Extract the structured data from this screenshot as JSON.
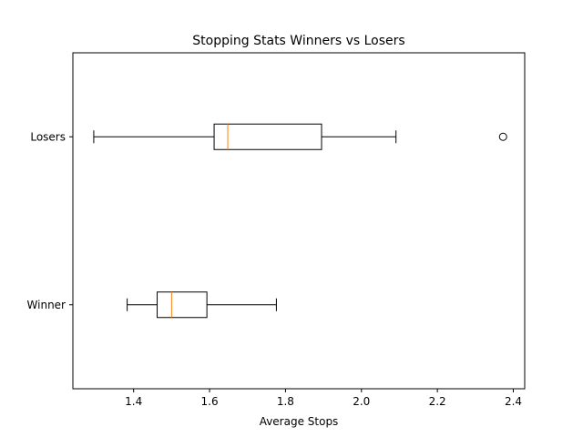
{
  "chart_data": {
    "type": "boxplot",
    "orientation": "horizontal",
    "title": "Stopping Stats Winners vs Losers",
    "xlabel": "Average Stops",
    "ylabel": "",
    "xlim": [
      1.24,
      2.43
    ],
    "xticks": [
      1.4,
      1.6,
      1.8,
      2.0,
      2.2,
      2.4
    ],
    "xtick_labels": [
      "1.4",
      "1.6",
      "1.8",
      "2.0",
      "2.2",
      "2.4"
    ],
    "categories": [
      "Winner",
      "Losers"
    ],
    "boxes": [
      {
        "label": "Winner",
        "whisker_low": 1.383,
        "q1": 1.462,
        "median": 1.5,
        "q3": 1.593,
        "whisker_high": 1.776,
        "outliers": []
      },
      {
        "label": "Losers",
        "whisker_low": 1.295,
        "q1": 1.612,
        "median": 1.648,
        "q3": 1.895,
        "whisker_high": 2.091,
        "outliers": [
          2.373
        ]
      }
    ],
    "colors": {
      "box": "#000000",
      "median": "#ff7f0e"
    },
    "grid": false,
    "legend": "none"
  }
}
